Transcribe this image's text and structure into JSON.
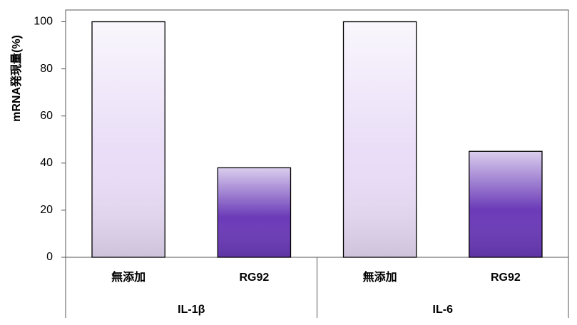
{
  "chart_data": {
    "type": "bar",
    "y_label": "mRNA発現量(%)",
    "categories": [
      "無添加",
      "RG92",
      "無添加",
      "RG92"
    ],
    "groups": [
      "IL-1β",
      "IL-6"
    ],
    "values": [
      100,
      38,
      100,
      45
    ],
    "colors": [
      "#e9ddf7",
      "#6b3bb8",
      "#e9ddf7",
      "#6b3bb8"
    ],
    "ylim": [
      0,
      105
    ],
    "yticks": [
      0,
      20,
      40,
      60,
      80,
      100
    ],
    "grid": false
  }
}
